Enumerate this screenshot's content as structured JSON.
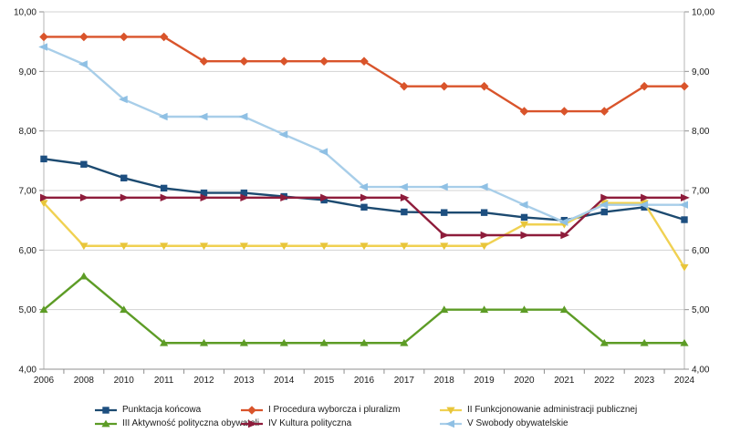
{
  "chart_data": {
    "type": "line",
    "title": "",
    "xlabel": "",
    "ylabel": "",
    "x_categories": [
      "2006",
      "2008",
      "2010",
      "2011",
      "2012",
      "2013",
      "2014",
      "2015",
      "2016",
      "2017",
      "2018",
      "2019",
      "2020",
      "2021",
      "2022",
      "2023",
      "2024"
    ],
    "ylim": [
      4,
      10
    ],
    "ytick_step": 1,
    "ytick_labels": [
      "4,00",
      "5,00",
      "6,00",
      "7,00",
      "8,00",
      "9,00",
      "10,00"
    ],
    "y_axis_sides": "both",
    "grid": "horizontal",
    "legend_position": "bottom",
    "colors": {
      "gridline": "#d3d3d3",
      "side_axis": "#b6b6b6",
      "bottom_axis": "#8f8f8f",
      "text": "#1a1a1a"
    },
    "series": [
      {
        "name": "Punktacja końcowa",
        "marker": "square",
        "color": "#1c4a70",
        "marker_color": "#1d4f80",
        "values": [
          7.53,
          7.44,
          7.21,
          7.04,
          6.96,
          6.96,
          6.9,
          6.84,
          6.72,
          6.64,
          6.63,
          6.63,
          6.55,
          6.5,
          6.64,
          6.72,
          6.51
        ]
      },
      {
        "name": "I Procedura wyborcza i pluralizm",
        "marker": "diamond",
        "color": "#d9542b",
        "marker_color": "#d9542b",
        "values": [
          9.58,
          9.58,
          9.58,
          9.58,
          9.17,
          9.17,
          9.17,
          9.17,
          9.17,
          8.75,
          8.75,
          8.75,
          8.33,
          8.33,
          8.33,
          8.75,
          8.75
        ]
      },
      {
        "name": "II Funkcjonowanie administracji publicznej",
        "marker": "triangle-down",
        "color": "#f0d152",
        "marker_color": "#e8c53a",
        "values": [
          6.79,
          6.07,
          6.07,
          6.07,
          6.07,
          6.07,
          6.07,
          6.07,
          6.07,
          6.07,
          6.07,
          6.07,
          6.43,
          6.43,
          6.79,
          6.79,
          5.71
        ]
      },
      {
        "name": "III Aktywność polityczna obywateli",
        "marker": "triangle-up",
        "color": "#5d9c26",
        "marker_color": "#5d9c26",
        "values": [
          5.0,
          5.56,
          5.0,
          4.44,
          4.44,
          4.44,
          4.44,
          4.44,
          4.44,
          4.44,
          5.0,
          5.0,
          5.0,
          5.0,
          4.44,
          4.44,
          4.44
        ]
      },
      {
        "name": "IV Kultura polityczna",
        "marker": "arrow-right",
        "color": "#8e1c3b",
        "marker_color": "#8e1c3b",
        "values": [
          6.88,
          6.88,
          6.88,
          6.88,
          6.88,
          6.88,
          6.88,
          6.88,
          6.88,
          6.88,
          6.25,
          6.25,
          6.25,
          6.25,
          6.88,
          6.88,
          6.88
        ]
      },
      {
        "name": "V Swobody obywatelskie",
        "marker": "arrow-left",
        "color": "#a8cee9",
        "marker_color": "#8fc0e4",
        "values": [
          9.41,
          9.12,
          8.53,
          8.24,
          8.24,
          8.24,
          7.94,
          7.65,
          7.06,
          7.06,
          7.06,
          7.06,
          6.76,
          6.47,
          6.76,
          6.76,
          6.76
        ]
      }
    ]
  }
}
